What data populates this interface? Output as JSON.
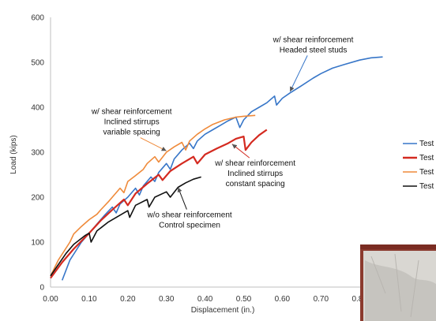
{
  "chart_data": {
    "type": "line",
    "xlabel": "Displacement (in.)",
    "ylabel": "Load (kips)",
    "xlim": [
      0,
      0.9
    ],
    "ylim": [
      0,
      600
    ],
    "xticks": [
      "0.00",
      "0.10",
      "0.20",
      "0.30",
      "0.40",
      "0.50",
      "0.60",
      "0.70",
      "0.80"
    ],
    "yticks": [
      "0",
      "100",
      "200",
      "300",
      "400",
      "500",
      "600"
    ],
    "grid": "none",
    "legend_position": "right",
    "legend_labels": [
      "Test",
      "Test",
      "Test",
      "Test"
    ],
    "series": [
      {
        "color": "#3776c8",
        "points": [
          [
            0.03,
            15
          ],
          [
            0.05,
            60
          ],
          [
            0.08,
            100
          ],
          [
            0.1,
            120
          ],
          [
            0.12,
            140
          ],
          [
            0.14,
            160
          ],
          [
            0.16,
            178
          ],
          [
            0.17,
            165
          ],
          [
            0.18,
            185
          ],
          [
            0.2,
            200
          ],
          [
            0.22,
            220
          ],
          [
            0.23,
            205
          ],
          [
            0.24,
            225
          ],
          [
            0.26,
            245
          ],
          [
            0.27,
            235
          ],
          [
            0.28,
            255
          ],
          [
            0.3,
            275
          ],
          [
            0.31,
            262
          ],
          [
            0.32,
            285
          ],
          [
            0.34,
            305
          ],
          [
            0.36,
            320
          ],
          [
            0.37,
            308
          ],
          [
            0.38,
            325
          ],
          [
            0.4,
            340
          ],
          [
            0.42,
            350
          ],
          [
            0.44,
            360
          ],
          [
            0.46,
            370
          ],
          [
            0.48,
            378
          ],
          [
            0.49,
            355
          ],
          [
            0.5,
            372
          ],
          [
            0.52,
            390
          ],
          [
            0.54,
            400
          ],
          [
            0.56,
            410
          ],
          [
            0.58,
            425
          ],
          [
            0.585,
            405
          ],
          [
            0.6,
            420
          ],
          [
            0.62,
            432
          ],
          [
            0.65,
            448
          ],
          [
            0.68,
            465
          ],
          [
            0.7,
            475
          ],
          [
            0.73,
            487
          ],
          [
            0.76,
            495
          ],
          [
            0.8,
            505
          ],
          [
            0.83,
            510
          ],
          [
            0.86,
            512
          ]
        ]
      },
      {
        "color": "#d42a20",
        "points": [
          [
            0.0,
            20
          ],
          [
            0.03,
            55
          ],
          [
            0.06,
            85
          ],
          [
            0.1,
            120
          ],
          [
            0.13,
            148
          ],
          [
            0.16,
            172
          ],
          [
            0.19,
            195
          ],
          [
            0.2,
            182
          ],
          [
            0.22,
            208
          ],
          [
            0.25,
            230
          ],
          [
            0.28,
            250
          ],
          [
            0.29,
            238
          ],
          [
            0.31,
            258
          ],
          [
            0.34,
            275
          ],
          [
            0.37,
            290
          ],
          [
            0.38,
            275
          ],
          [
            0.4,
            295
          ],
          [
            0.43,
            308
          ],
          [
            0.46,
            320
          ],
          [
            0.48,
            330
          ],
          [
            0.5,
            335
          ],
          [
            0.505,
            305
          ],
          [
            0.52,
            322
          ],
          [
            0.54,
            338
          ],
          [
            0.56,
            350
          ]
        ]
      },
      {
        "color": "#ef8a3a",
        "points": [
          [
            0.0,
            25
          ],
          [
            0.02,
            60
          ],
          [
            0.05,
            100
          ],
          [
            0.06,
            118
          ],
          [
            0.08,
            135
          ],
          [
            0.1,
            150
          ],
          [
            0.12,
            162
          ],
          [
            0.13,
            172
          ],
          [
            0.15,
            190
          ],
          [
            0.16,
            200
          ],
          [
            0.18,
            220
          ],
          [
            0.19,
            210
          ],
          [
            0.2,
            235
          ],
          [
            0.22,
            248
          ],
          [
            0.24,
            262
          ],
          [
            0.25,
            275
          ],
          [
            0.27,
            290
          ],
          [
            0.28,
            278
          ],
          [
            0.3,
            300
          ],
          [
            0.32,
            312
          ],
          [
            0.34,
            322
          ],
          [
            0.35,
            305
          ],
          [
            0.36,
            325
          ],
          [
            0.38,
            340
          ],
          [
            0.4,
            352
          ],
          [
            0.42,
            362
          ],
          [
            0.45,
            372
          ],
          [
            0.48,
            378
          ],
          [
            0.5,
            380
          ],
          [
            0.53,
            382
          ]
        ]
      },
      {
        "color": "#111111",
        "points": [
          [
            0.0,
            25
          ],
          [
            0.02,
            50
          ],
          [
            0.04,
            75
          ],
          [
            0.06,
            95
          ],
          [
            0.09,
            115
          ],
          [
            0.1,
            120
          ],
          [
            0.105,
            100
          ],
          [
            0.12,
            125
          ],
          [
            0.15,
            145
          ],
          [
            0.18,
            160
          ],
          [
            0.2,
            170
          ],
          [
            0.205,
            155
          ],
          [
            0.22,
            182
          ],
          [
            0.25,
            195
          ],
          [
            0.255,
            178
          ],
          [
            0.27,
            200
          ],
          [
            0.3,
            212
          ],
          [
            0.31,
            200
          ],
          [
            0.33,
            222
          ],
          [
            0.35,
            232
          ],
          [
            0.37,
            240
          ],
          [
            0.39,
            245
          ]
        ]
      }
    ],
    "annotations": [
      {
        "lines": [
          "w/ shear reinforcement",
          "Headed steel studs"
        ],
        "arrow_to": [
          0.62,
          435
        ],
        "text_at": [
          0.68,
          545
        ]
      },
      {
        "lines": [
          "w/ shear reinforcement",
          "Inclined stirrups",
          "variable spacing"
        ],
        "arrow_to": [
          0.3,
          303
        ],
        "text_at": [
          0.21,
          385
        ]
      },
      {
        "lines": [
          "w/ shear reinforcement",
          "Inclined stirrups",
          "constant spacing"
        ],
        "arrow_to": [
          0.47,
          318
        ],
        "text_at": [
          0.53,
          270
        ]
      },
      {
        "lines": [
          "w/o shear reinforcement",
          "Control specimen"
        ],
        "arrow_to": [
          0.33,
          222
        ],
        "text_at": [
          0.36,
          155
        ]
      }
    ]
  }
}
